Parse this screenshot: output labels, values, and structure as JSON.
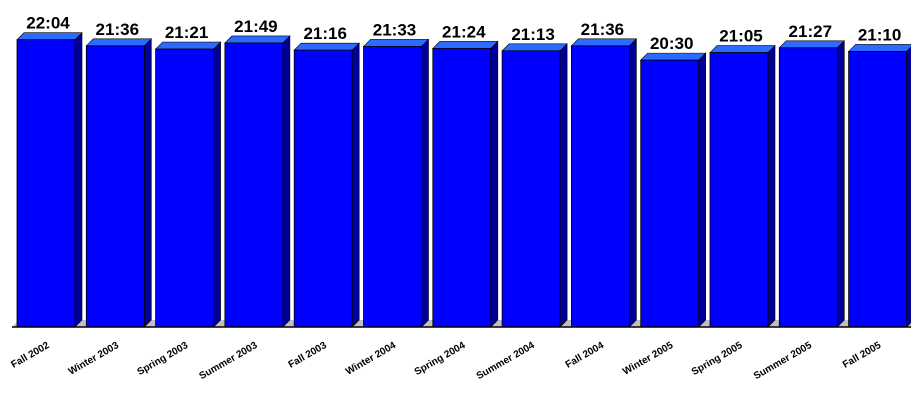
{
  "chart_data": {
    "type": "bar",
    "categories": [
      "Fall 2002",
      "Winter 2003",
      "Spring 2003",
      "Summer 2003",
      "Fall 2003",
      "Winter 2004",
      "Spring 2004",
      "Summer 2004",
      "Fall 2004",
      "Winter 2005",
      "Spring 2005",
      "Summer 2005",
      "Fall 2005"
    ],
    "value_labels": [
      "22:04",
      "21:36",
      "21:21",
      "21:49",
      "21:16",
      "21:33",
      "21:24",
      "21:13",
      "21:36",
      "20:30",
      "21:05",
      "21:27",
      "21:10"
    ],
    "values": [
      22.067,
      21.6,
      21.35,
      21.817,
      21.267,
      21.55,
      21.4,
      21.217,
      21.6,
      20.5,
      21.083,
      21.45,
      21.167
    ],
    "ylim": [
      0,
      22.2
    ],
    "title": "",
    "xlabel": "",
    "ylabel": "",
    "grid": false,
    "colors": {
      "bar_front": "#0000ff",
      "bar_top": "#2b6bff",
      "bar_side": "#000099",
      "floor": "#c0c0c0",
      "axis": "#000000"
    }
  }
}
